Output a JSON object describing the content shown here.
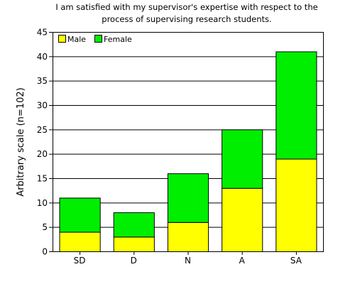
{
  "chart_data": {
    "type": "bar",
    "stacked": true,
    "title_lines": [
      "I am satisfied with my supervisor's expertise with respect to the",
      "process of supervising research students."
    ],
    "xlabel": "",
    "ylabel": "Arbitrary scale (n=102)",
    "categories": [
      "SD",
      "D",
      "N",
      "A",
      "SA"
    ],
    "series": [
      {
        "name": "Male",
        "color": "#ffff00",
        "values": [
          4,
          3,
          6,
          13,
          19
        ]
      },
      {
        "name": "Female",
        "color": "#00ee00",
        "values": [
          7,
          5,
          10,
          12,
          22
        ]
      }
    ],
    "ylim": [
      0,
      45
    ],
    "yticks": [
      0,
      5,
      10,
      15,
      20,
      25,
      30,
      35,
      40,
      45
    ],
    "grid": "horizontal",
    "legend_position": "top-left"
  }
}
